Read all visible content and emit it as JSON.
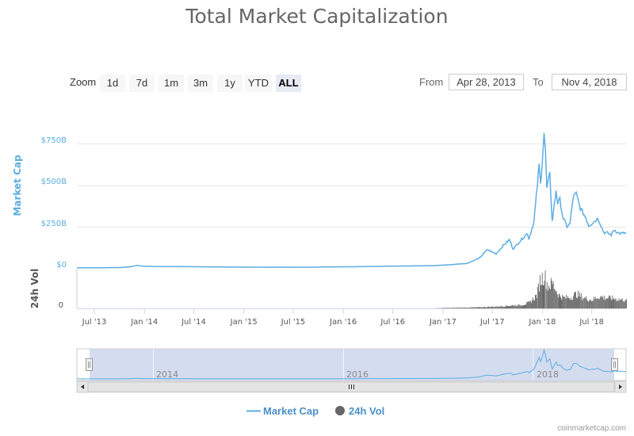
{
  "title": "Total Market Capitalization",
  "zoom": {
    "label": "Zoom",
    "buttons": [
      "1d",
      "7d",
      "1m",
      "3m",
      "1y",
      "YTD",
      "ALL"
    ],
    "active": "ALL"
  },
  "range": {
    "from_label": "From",
    "from_value": "Apr 28, 2013",
    "to_label": "To",
    "to_value": "Nov 4, 2018"
  },
  "colors": {
    "market_cap": "#5dade2",
    "volume": "#555555",
    "navigator_fill": "#cdd6ec",
    "grid": "#e6e6e6"
  },
  "chart_data": {
    "type": "line",
    "title": "Total Market Capitalization",
    "ylabel": "Market Cap",
    "ylabel_volume": "24h Vol",
    "ylim": [
      0,
      800
    ],
    "y_unit": "billion USD",
    "y_ticks": [
      "$0",
      "$250B",
      "$500B",
      "$750B"
    ],
    "volume_ticks": [
      "0"
    ],
    "x_ticks": [
      "Jul '13",
      "Jan '14",
      "Jul '14",
      "Jan '15",
      "Jul '15",
      "Jan '16",
      "Jul '16",
      "Jan '17",
      "Jul '17",
      "Jan '18",
      "Jul '18"
    ],
    "navigator_ticks": [
      "2014",
      "2016",
      "2018"
    ],
    "legend": [
      "Market Cap",
      "24h Vol"
    ],
    "legend_position": "bottom",
    "grid": true,
    "series": [
      {
        "name": "Market Cap",
        "x": [
          "2013-04-28",
          "2013-07-01",
          "2013-10-01",
          "2013-11-15",
          "2013-12-04",
          "2014-01-01",
          "2014-03-01",
          "2014-06-01",
          "2014-09-01",
          "2014-12-01",
          "2015-03-01",
          "2015-06-01",
          "2015-09-01",
          "2015-12-01",
          "2016-03-01",
          "2016-06-01",
          "2016-09-01",
          "2016-12-01",
          "2017-02-01",
          "2017-04-01",
          "2017-05-15",
          "2017-06-12",
          "2017-07-15",
          "2017-08-10",
          "2017-09-02",
          "2017-09-15",
          "2017-10-10",
          "2017-11-07",
          "2017-11-12",
          "2017-12-01",
          "2017-12-10",
          "2017-12-20",
          "2017-12-25",
          "2018-01-07",
          "2018-01-12",
          "2018-01-17",
          "2018-01-28",
          "2018-02-06",
          "2018-02-20",
          "2018-02-26",
          "2018-03-06",
          "2018-03-18",
          "2018-04-01",
          "2018-04-12",
          "2018-04-24",
          "2018-05-05",
          "2018-05-20",
          "2018-06-10",
          "2018-06-20",
          "2018-07-10",
          "2018-07-24",
          "2018-08-14",
          "2018-08-28",
          "2018-09-11",
          "2018-09-21",
          "2018-10-10",
          "2018-11-04"
        ],
        "values": [
          1.6,
          1.2,
          2.0,
          8.0,
          15.0,
          10.0,
          8.0,
          8.0,
          6.5,
          5.0,
          4.5,
          4.5,
          4.3,
          6.5,
          7.5,
          10.0,
          12.0,
          14.0,
          20.0,
          28.0,
          60.0,
          110.0,
          85.0,
          135.0,
          170.0,
          115.0,
          160.0,
          210.0,
          175.0,
          280.0,
          440.0,
          620.0,
          500.0,
          813.0,
          690.0,
          480.0,
          560.0,
          280.0,
          470.0,
          390.0,
          410.0,
          300.0,
          250.0,
          265.0,
          430.0,
          445.0,
          360.0,
          300.0,
          255.0,
          280.0,
          300.0,
          215.0,
          210.0,
          200.0,
          230.0,
          208.0,
          210.0
        ]
      },
      {
        "name": "24h Vol",
        "x": [
          "2013-04-28",
          "2014-01-01",
          "2015-01-01",
          "2016-01-01",
          "2016-12-01",
          "2017-05-01",
          "2017-07-01",
          "2017-08-15",
          "2017-09-15",
          "2017-10-15",
          "2017-11-15",
          "2017-12-10",
          "2017-12-22",
          "2018-01-07",
          "2018-01-20",
          "2018-02-06",
          "2018-03-01",
          "2018-03-20",
          "2018-04-15",
          "2018-05-05",
          "2018-06-01",
          "2018-07-01",
          "2018-07-25",
          "2018-08-20",
          "2018-09-20",
          "2018-10-20",
          "2018-11-04"
        ],
        "values": [
          0.05,
          0.1,
          0.05,
          0.1,
          0.3,
          1.5,
          2.5,
          3.5,
          4.5,
          5.0,
          9.0,
          20.0,
          42.0,
          50.0,
          34.0,
          38.0,
          20.0,
          16.0,
          17.0,
          22.0,
          16.0,
          13.0,
          18.0,
          16.0,
          15.0,
          13.0,
          14.0
        ]
      }
    ],
    "volume_scale_max": 60
  },
  "legend": {
    "market_cap": "Market Cap",
    "volume": "24h Vol"
  },
  "credit": "coinmarketcap.com"
}
